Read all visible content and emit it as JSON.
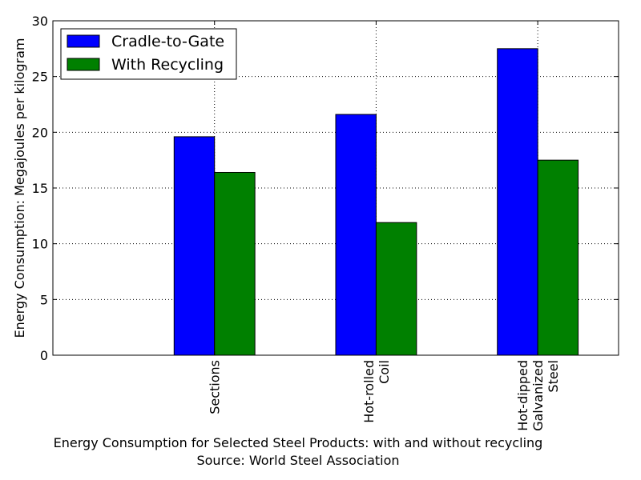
{
  "chart_data": {
    "type": "bar",
    "categories": [
      [
        "Sections"
      ],
      [
        "Hot-rolled",
        "Coil"
      ],
      [
        "Hot-dipped",
        "Galvanized",
        "Steel"
      ]
    ],
    "series": [
      {
        "name": "Cradle-to-Gate",
        "values": [
          19.6,
          21.6,
          27.5
        ],
        "color": "#0000ff"
      },
      {
        "name": "With Recycling",
        "values": [
          16.4,
          11.9,
          17.5
        ],
        "color": "#008000"
      }
    ],
    "ylabel": "Energy Consumption: Megajoules per kilogram",
    "xlabel": [
      "Energy Consumption for Selected Steel Products: with and without recycling",
      "Source: World Steel Association"
    ],
    "ylim": [
      0,
      30
    ],
    "yticks": [
      0,
      5,
      10,
      15,
      20,
      25,
      30
    ],
    "grid": true,
    "legend_position": "top-left"
  }
}
